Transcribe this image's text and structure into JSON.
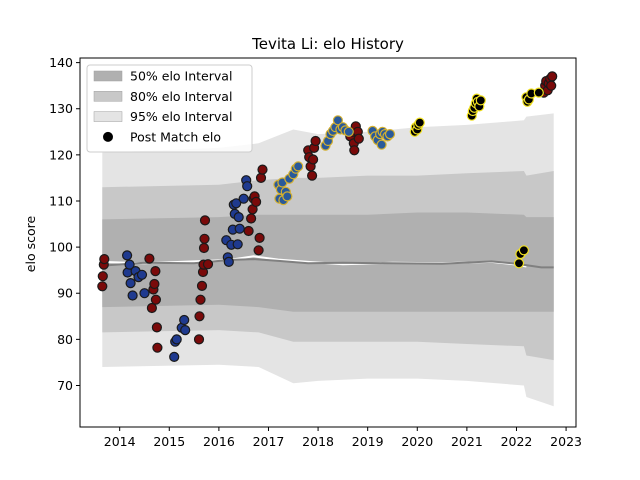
{
  "chart_data": {
    "type": "scatter",
    "title": "Tevita Li: elo History",
    "xlabel": "",
    "ylabel": "elo score",
    "xlim": [
      2013.2,
      2023.2
    ],
    "ylim": [
      61,
      141
    ],
    "xticks": [
      2014,
      2015,
      2016,
      2017,
      2018,
      2019,
      2020,
      2021,
      2022,
      2023
    ],
    "yticks": [
      70,
      80,
      90,
      100,
      110,
      120,
      130,
      140
    ],
    "grid": false,
    "legend_position": "top-left",
    "legend": [
      {
        "label": "50% elo Interval",
        "color": "#b0b0b0"
      },
      {
        "label": "80% elo Interval",
        "color": "#c8c8c8"
      },
      {
        "label": "95% elo Interval",
        "color": "#e4e4e4"
      },
      {
        "label": "Post Match elo",
        "color": "#000000"
      }
    ],
    "bands": [
      {
        "name": "95% elo Interval",
        "color": "#e4e4e4",
        "x": [
          2013.65,
          2016.0,
          2016.8,
          2017.5,
          2018.0,
          2019.0,
          2020.0,
          2021.0,
          2022.15,
          2022.2,
          2022.75
        ],
        "upper": [
          120.5,
          121.5,
          122.5,
          125.5,
          124.5,
          125.0,
          126.0,
          126.5,
          127.5,
          128.3,
          129.0
        ],
        "lower": [
          74.0,
          74.5,
          74.0,
          70.5,
          71.0,
          71.5,
          71.5,
          71.0,
          70.0,
          67.5,
          65.5
        ]
      },
      {
        "name": "80% elo Interval",
        "color": "#c8c8c8",
        "x": [
          2013.65,
          2016.0,
          2016.8,
          2017.5,
          2018.0,
          2019.0,
          2020.0,
          2021.0,
          2022.15,
          2022.2,
          2022.75
        ],
        "upper": [
          113.0,
          113.5,
          114.5,
          115.0,
          115.0,
          115.5,
          115.5,
          116.0,
          116.5,
          115.5,
          116.5
        ],
        "lower": [
          81.5,
          82.0,
          81.5,
          79.5,
          79.5,
          79.5,
          79.5,
          79.0,
          78.5,
          76.5,
          75.5
        ]
      },
      {
        "name": "50% elo Interval",
        "color": "#b0b0b0",
        "x": [
          2013.65,
          2016.0,
          2016.8,
          2017.5,
          2018.0,
          2019.0,
          2020.0,
          2021.0,
          2022.15,
          2022.2,
          2022.75
        ],
        "upper": [
          106.0,
          106.5,
          107.0,
          107.0,
          107.0,
          107.0,
          107.5,
          107.5,
          107.0,
          106.5,
          106.5
        ],
        "lower": [
          87.0,
          87.5,
          87.0,
          86.0,
          86.0,
          86.0,
          86.0,
          86.0,
          86.0,
          86.0,
          86.0
        ]
      }
    ],
    "median_lines": [
      {
        "color": "#ffffff",
        "x": [
          2013.65,
          2014.5,
          2015.5,
          2016.2,
          2016.7,
          2017.2,
          2017.8,
          2018.5,
          2019.5,
          2020.5,
          2021.5,
          2022.0,
          2022.2
        ],
        "y": [
          96.8,
          96.5,
          96.9,
          97.2,
          98.0,
          97.3,
          96.8,
          96.3,
          96.6,
          96.5,
          96.8,
          96.2,
          95.8
        ]
      },
      {
        "color": "#808080",
        "x": [
          2013.65,
          2014.5,
          2015.5,
          2016.2,
          2016.7,
          2017.2,
          2017.8,
          2018.5,
          2019.5,
          2020.5,
          2021.5,
          2022.0,
          2022.5,
          2022.75
        ],
        "y": [
          96.0,
          96.6,
          96.5,
          97.2,
          97.4,
          97.0,
          96.5,
          96.6,
          96.5,
          96.4,
          96.9,
          96.4,
          95.6,
          95.6
        ]
      }
    ],
    "series": [
      {
        "fill": "#7a0a0a",
        "edge": "#1a1a1a",
        "points": [
          [
            2013.65,
            91.5
          ],
          [
            2013.66,
            93.7
          ],
          [
            2013.68,
            96.2
          ],
          [
            2013.69,
            97.4
          ],
          [
            2014.6,
            97.5
          ],
          [
            2014.65,
            86.8
          ],
          [
            2014.68,
            90.8
          ],
          [
            2014.7,
            92.0
          ],
          [
            2014.72,
            94.8
          ],
          [
            2014.73,
            88.6
          ],
          [
            2014.75,
            82.6
          ],
          [
            2014.76,
            78.2
          ],
          [
            2015.6,
            80.0
          ],
          [
            2015.61,
            85.0
          ],
          [
            2015.63,
            88.6
          ],
          [
            2015.66,
            91.6
          ],
          [
            2015.68,
            94.6
          ],
          [
            2015.69,
            96.2
          ],
          [
            2015.7,
            99.8
          ],
          [
            2015.71,
            101.8
          ],
          [
            2015.72,
            105.8
          ],
          [
            2015.78,
            96.3
          ],
          [
            2016.6,
            103.5
          ],
          [
            2016.65,
            106.2
          ],
          [
            2016.68,
            108.2
          ],
          [
            2016.7,
            110.5
          ],
          [
            2016.72,
            111.0
          ],
          [
            2016.75,
            109.8
          ],
          [
            2016.8,
            99.3
          ],
          [
            2016.82,
            102.0
          ],
          [
            2016.85,
            115.0
          ],
          [
            2016.88,
            116.8
          ],
          [
            2017.8,
            121.0
          ],
          [
            2017.82,
            119.5
          ],
          [
            2017.85,
            117.5
          ],
          [
            2017.88,
            115.5
          ],
          [
            2017.9,
            119.0
          ],
          [
            2017.92,
            121.5
          ],
          [
            2017.95,
            123.0
          ],
          [
            2018.65,
            124.0
          ],
          [
            2018.7,
            125.0
          ],
          [
            2018.72,
            122.5
          ],
          [
            2018.73,
            121.0
          ],
          [
            2018.76,
            126.2
          ],
          [
            2018.8,
            125.0
          ],
          [
            2018.82,
            123.5
          ],
          [
            2022.55,
            133.5
          ],
          [
            2022.58,
            135.0
          ],
          [
            2022.6,
            136.0
          ],
          [
            2022.63,
            134.0
          ],
          [
            2022.65,
            135.5
          ],
          [
            2022.68,
            136.5
          ],
          [
            2022.7,
            135.0
          ],
          [
            2022.72,
            137.0
          ]
        ]
      },
      {
        "fill": "#1f3a8f",
        "edge": "#1a1a1a",
        "points": [
          [
            2014.15,
            98.2
          ],
          [
            2014.16,
            94.5
          ],
          [
            2014.2,
            96.2
          ],
          [
            2014.22,
            92.2
          ],
          [
            2014.26,
            89.5
          ],
          [
            2014.32,
            94.8
          ],
          [
            2014.38,
            93.5
          ],
          [
            2014.45,
            94.0
          ],
          [
            2014.5,
            90.0
          ],
          [
            2015.1,
            76.2
          ],
          [
            2015.12,
            79.5
          ],
          [
            2015.15,
            80.0
          ],
          [
            2015.25,
            82.5
          ],
          [
            2015.3,
            84.2
          ],
          [
            2015.32,
            82.0
          ],
          [
            2016.15,
            101.5
          ],
          [
            2016.18,
            97.8
          ],
          [
            2016.2,
            96.8
          ],
          [
            2016.25,
            100.5
          ],
          [
            2016.28,
            103.8
          ],
          [
            2016.3,
            109.2
          ],
          [
            2016.32,
            107.2
          ],
          [
            2016.35,
            109.5
          ],
          [
            2016.38,
            100.6
          ],
          [
            2016.4,
            106.5
          ],
          [
            2016.42,
            104.0
          ],
          [
            2016.5,
            110.5
          ],
          [
            2016.55,
            114.5
          ],
          [
            2016.57,
            113.2
          ]
        ]
      },
      {
        "fill": "#2a5a9a",
        "edge": "#d4b030",
        "points": [
          [
            2017.2,
            113.5
          ],
          [
            2017.22,
            110.5
          ],
          [
            2017.25,
            112.5
          ],
          [
            2017.28,
            114.0
          ],
          [
            2017.3,
            110.2
          ],
          [
            2017.35,
            112.0
          ],
          [
            2017.38,
            111.0
          ],
          [
            2017.42,
            114.8
          ],
          [
            2017.5,
            115.8
          ],
          [
            2017.55,
            117.0
          ],
          [
            2017.6,
            117.5
          ],
          [
            2018.15,
            122.0
          ],
          [
            2018.2,
            123.0
          ],
          [
            2018.25,
            124.5
          ],
          [
            2018.3,
            125.2
          ],
          [
            2018.35,
            126.0
          ],
          [
            2018.4,
            127.5
          ],
          [
            2018.45,
            125.5
          ],
          [
            2018.5,
            126.0
          ],
          [
            2018.55,
            125.3
          ],
          [
            2018.62,
            125.0
          ],
          [
            2019.1,
            125.2
          ],
          [
            2019.15,
            124.0
          ],
          [
            2019.2,
            123.2
          ],
          [
            2019.25,
            124.5
          ],
          [
            2019.28,
            122.2
          ],
          [
            2019.3,
            125.0
          ],
          [
            2019.35,
            124.5
          ],
          [
            2019.4,
            124.0
          ],
          [
            2019.45,
            124.5
          ]
        ]
      },
      {
        "fill": "#000000",
        "edge": "#f0e020",
        "points": [
          [
            2019.95,
            125.0
          ],
          [
            2019.97,
            126.0
          ],
          [
            2020.0,
            125.5
          ],
          [
            2020.02,
            126.5
          ],
          [
            2020.05,
            127.0
          ],
          [
            2021.1,
            128.5
          ],
          [
            2021.12,
            129.5
          ],
          [
            2021.15,
            130.2
          ],
          [
            2021.18,
            131.2
          ],
          [
            2021.2,
            132.2
          ],
          [
            2021.22,
            131.5
          ],
          [
            2021.25,
            130.5
          ],
          [
            2021.28,
            131.8
          ],
          [
            2022.05,
            96.5
          ],
          [
            2022.08,
            98.5
          ],
          [
            2022.15,
            99.3
          ],
          [
            2022.2,
            132.5
          ],
          [
            2022.22,
            131.5
          ],
          [
            2022.25,
            132.0
          ],
          [
            2022.3,
            133.3
          ],
          [
            2022.45,
            133.5
          ]
        ]
      }
    ]
  }
}
